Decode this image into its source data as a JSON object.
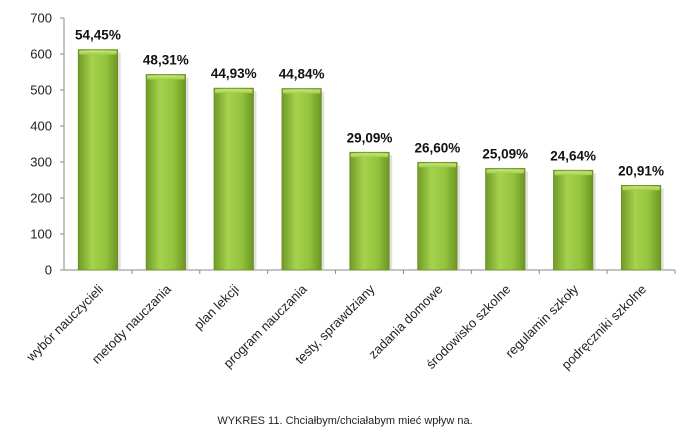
{
  "chart_data": {
    "type": "bar",
    "categories": [
      "wybór nauczycieli",
      "metody nauczania",
      "plan lekcji",
      "program nauczania",
      "testy, sprawdziany",
      "zadania domowe",
      "środowisko szkolne",
      "regulamin szkoły",
      "podręczniki szkolne"
    ],
    "values": [
      612,
      543,
      505,
      504,
      327,
      299,
      282,
      277,
      235
    ],
    "data_labels": [
      "54,45%",
      "48,31%",
      "44,93%",
      "44,84%",
      "29,09%",
      "26,60%",
      "25,09%",
      "24,64%",
      "20,91%"
    ],
    "yticks": [
      "0",
      "100",
      "200",
      "300",
      "400",
      "500",
      "600",
      "700"
    ],
    "ylim": [
      0,
      700
    ],
    "grid": false,
    "bar_color": "#8fbf3a",
    "title": "",
    "xlabel": "",
    "ylabel": ""
  },
  "caption": "WYKRES 11. Chciałbym/chciałabym mieć wpływ na."
}
